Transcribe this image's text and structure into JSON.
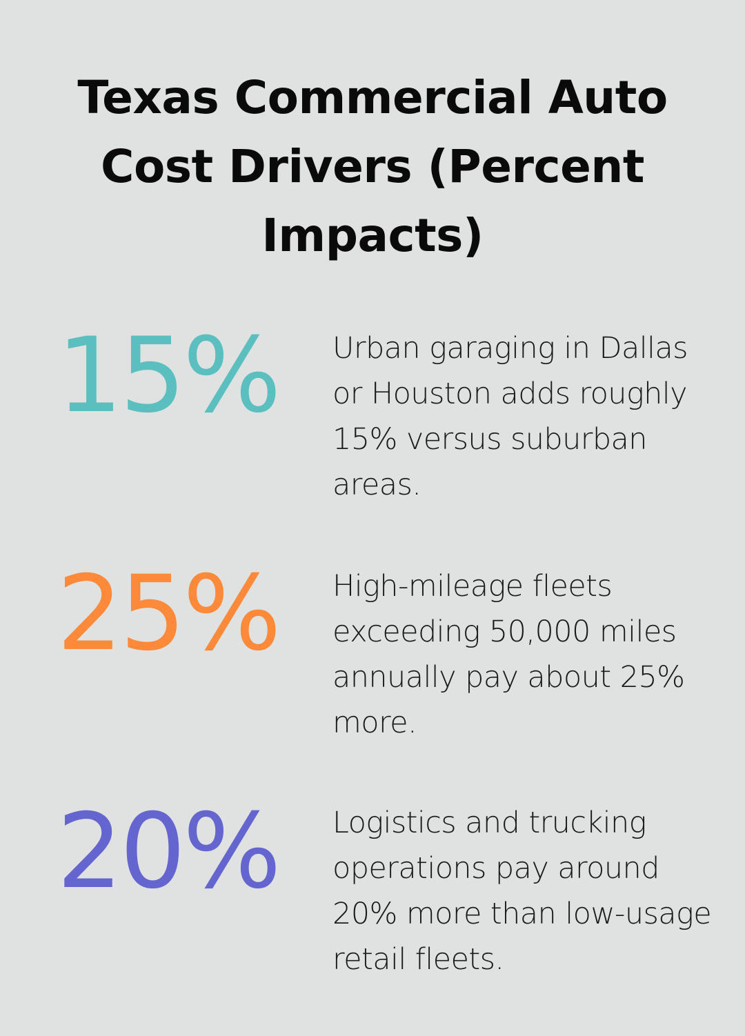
{
  "title": "Texas Commercial Auto Cost Drivers (Percent Impacts)",
  "stats": [
    {
      "value": "15%",
      "color": "#5bbfbf",
      "description": "Urban garaging in Dallas or Houston adds roughly 15% versus suburban areas."
    },
    {
      "value": "25%",
      "color": "#fd8a3b",
      "description": "High-mileage fleets exceeding 50,000 miles annually pay about 25% more."
    },
    {
      "value": "20%",
      "color": "#6565d0",
      "description": "Logistics and trucking operations pay around 20% more than low-usage retail fleets."
    }
  ]
}
